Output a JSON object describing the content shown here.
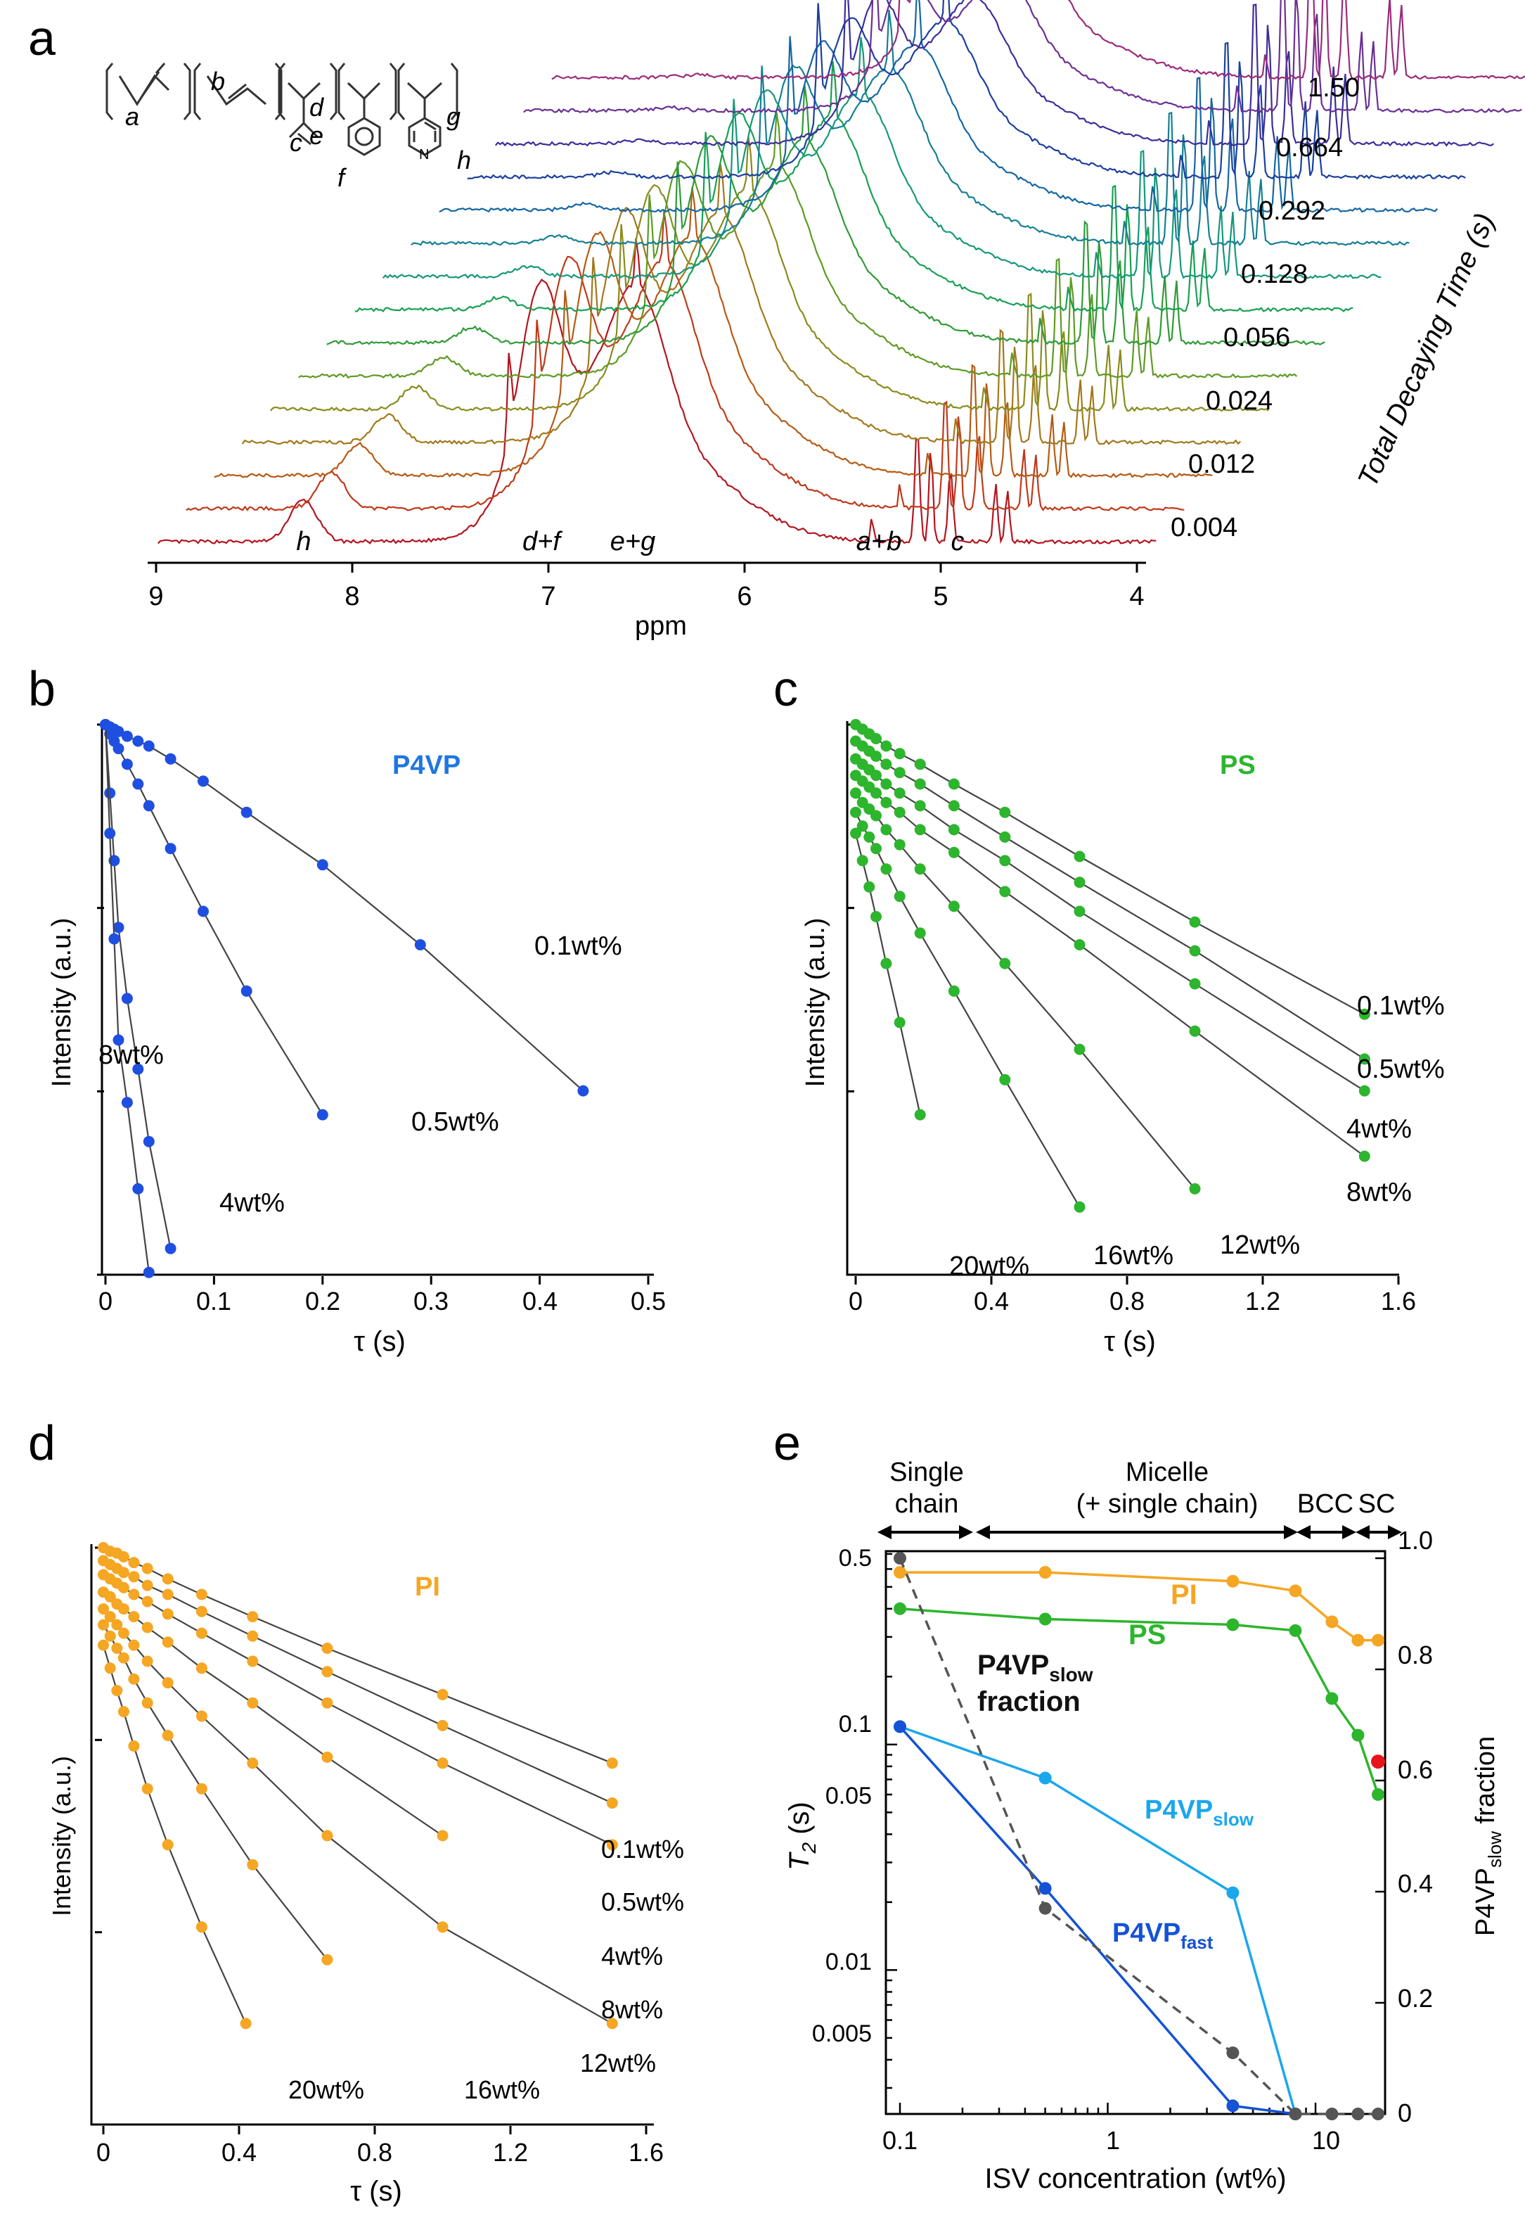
{
  "panels": {
    "a": {
      "letter": "a",
      "xlabel": "ppm",
      "xticks": [
        "9",
        "8",
        "7",
        "6",
        "5",
        "4"
      ],
      "ylabel": "Total Decaying Time (s)",
      "time_labels": [
        "0.004",
        "0.012",
        "0.024",
        "0.056",
        "0.128",
        "0.292",
        "0.664",
        "1.50"
      ],
      "peak_labels": {
        "h": "h",
        "df": "d+f",
        "eg": "e+g",
        "ab": "a+b",
        "c": "c"
      },
      "structure_labels": {
        "a": "a",
        "b": "b",
        "c": "c",
        "d": "d",
        "e": "e",
        "f": "f",
        "g": "g",
        "h": "h",
        "n": "N"
      }
    },
    "b": {
      "letter": "b",
      "xlabel": "τ (s)",
      "ylabel": "Intensity (a.u.)",
      "title": "P4VP",
      "xticks": [
        "0",
        "0.1",
        "0.2",
        "0.3",
        "0.4",
        "0.5"
      ],
      "series_labels": [
        "0.1wt%",
        "0.5wt%",
        "4wt%",
        "8wt%"
      ]
    },
    "c": {
      "letter": "c",
      "xlabel": "τ (s)",
      "ylabel": "Intensity (a.u.)",
      "title": "PS",
      "xticks": [
        "0",
        "0.4",
        "0.8",
        "1.2",
        "1.6"
      ],
      "series_labels": [
        "0.1wt%",
        "0.5wt%",
        "4wt%",
        "8wt%",
        "12wt%",
        "16wt%",
        "20wt%"
      ]
    },
    "d": {
      "letter": "d",
      "xlabel": "τ (s)",
      "ylabel": "Intensity (a.u.)",
      "title": "PI",
      "xticks": [
        "0",
        "0.4",
        "0.8",
        "1.2",
        "1.6"
      ],
      "series_labels": [
        "0.1wt%",
        "0.5wt%",
        "4wt%",
        "8wt%",
        "12wt%",
        "16wt%",
        "20wt%"
      ]
    },
    "e": {
      "letter": "e",
      "xlabel": "ISV concentration (wt%)",
      "ylabel_main": "T",
      "ylabel_sub": "2",
      "ylabel_unit": " (s)",
      "y2label_main": "P4VP",
      "y2label_sub": "slow",
      "y2label_unit": " fraction",
      "xticks": [
        "0.1",
        "1",
        "10"
      ],
      "yticks": [
        "0.005",
        "0.01",
        "0.05",
        "0.1",
        "0.5"
      ],
      "y2ticks": [
        "0",
        "0.2",
        "0.4",
        "0.6",
        "0.8",
        "1.0"
      ],
      "regions": {
        "single_l1": "Single",
        "single_l2": "chain",
        "micelle_l1": "Micelle",
        "micelle_l2": "(+ single chain)",
        "bcc": "BCC",
        "sc": "SC"
      },
      "labels": {
        "pi": "PI",
        "ps": "PS",
        "slow_main": "P4VP",
        "slow_sub": "slow",
        "fast_main": "P4VP",
        "fast_sub": "fast",
        "frac_main": "P4VP",
        "frac_sub": "slow",
        "frac_l2": "fraction"
      }
    }
  },
  "colors": {
    "p4vp": "#1f4fe0",
    "ps": "#2db52d",
    "pi": "#f5a623",
    "p4vp_slow": "#1aa7ec",
    "p4vp_fast": "#1552d6",
    "fraction": "#555555",
    "highlight": "#e8141c"
  },
  "chart_data": [
    {
      "panel": "a",
      "type": "line",
      "x_axis": "chemical shift (ppm)",
      "xlim": [
        9,
        3.8
      ],
      "series_times_s": [
        0.004,
        0.006,
        0.012,
        0.016,
        0.024,
        0.036,
        0.056,
        0.084,
        0.128,
        0.19,
        0.292,
        0.44,
        0.664,
        1.0,
        1.5
      ],
      "peaks": [
        {
          "label": "h",
          "ppm": 8.25
        },
        {
          "label": "d+f",
          "ppm": 7.1
        },
        {
          "label": "e+g",
          "ppm": 6.55
        },
        {
          "label": "a+b",
          "ppm": 5.0
        },
        {
          "label": "c",
          "ppm": 4.65
        }
      ]
    },
    {
      "panel": "b",
      "type": "scatter",
      "title": "P4VP",
      "xlabel": "τ (s)",
      "ylabel": "Intensity (a.u.)",
      "xlim": [
        0,
        0.5
      ],
      "y_scale": "log",
      "series": [
        {
          "name": "0.1wt%",
          "x": [
            0,
            0.004,
            0.008,
            0.012,
            0.02,
            0.03,
            0.04,
            0.06,
            0.09,
            0.13,
            0.2,
            0.29,
            0.44
          ],
          "y": [
            1.0,
            0.99,
            0.98,
            0.97,
            0.95,
            0.93,
            0.91,
            0.86,
            0.78,
            0.68,
            0.54,
            0.38,
            0.2
          ]
        },
        {
          "name": "0.5wt%",
          "x": [
            0,
            0.004,
            0.008,
            0.012,
            0.02,
            0.03,
            0.04,
            0.06,
            0.09,
            0.13,
            0.2
          ],
          "y": [
            1.0,
            0.96,
            0.93,
            0.9,
            0.84,
            0.77,
            0.7,
            0.58,
            0.44,
            0.31,
            0.18
          ]
        },
        {
          "name": "4wt%",
          "x": [
            0,
            0.004,
            0.008,
            0.012,
            0.02,
            0.03,
            0.04,
            0.06
          ],
          "y": [
            1.0,
            0.74,
            0.55,
            0.41,
            0.3,
            0.22,
            0.16,
            0.1
          ]
        },
        {
          "name": "8wt%",
          "x": [
            0,
            0.004,
            0.008,
            0.012,
            0.02,
            0.03,
            0.04
          ],
          "y": [
            1.0,
            0.62,
            0.39,
            0.25,
            0.19,
            0.13,
            0.09
          ]
        }
      ]
    },
    {
      "panel": "c",
      "type": "scatter",
      "title": "PS",
      "xlabel": "τ (s)",
      "ylabel": "Intensity (a.u.)",
      "xlim": [
        0,
        1.6
      ],
      "y_scale": "log",
      "series": [
        {
          "name": "0.1wt%",
          "x": [
            0,
            0.02,
            0.04,
            0.06,
            0.09,
            0.13,
            0.19,
            0.29,
            0.44,
            0.66,
            1.0,
            1.5
          ],
          "y": [
            1.0,
            0.98,
            0.96,
            0.94,
            0.91,
            0.88,
            0.84,
            0.77,
            0.68,
            0.56,
            0.42,
            0.28
          ]
        },
        {
          "name": "0.5wt%",
          "x": [
            0,
            0.02,
            0.04,
            0.06,
            0.09,
            0.13,
            0.19,
            0.29,
            0.44,
            0.66,
            1.0,
            1.5
          ],
          "y": [
            0.93,
            0.91,
            0.89,
            0.87,
            0.84,
            0.81,
            0.77,
            0.7,
            0.61,
            0.5,
            0.37,
            0.23
          ]
        },
        {
          "name": "4wt%",
          "x": [
            0,
            0.02,
            0.04,
            0.06,
            0.09,
            0.13,
            0.19,
            0.29,
            0.44,
            0.66,
            1.0,
            1.5
          ],
          "y": [
            0.86,
            0.84,
            0.82,
            0.8,
            0.77,
            0.74,
            0.7,
            0.63,
            0.55,
            0.44,
            0.32,
            0.2
          ]
        },
        {
          "name": "8wt%",
          "x": [
            0,
            0.02,
            0.04,
            0.06,
            0.09,
            0.13,
            0.19,
            0.29,
            0.44,
            0.66,
            1.0,
            1.5
          ],
          "y": [
            0.8,
            0.78,
            0.76,
            0.74,
            0.71,
            0.68,
            0.63,
            0.57,
            0.48,
            0.38,
            0.26,
            0.15
          ]
        },
        {
          "name": "12wt%",
          "x": [
            0,
            0.02,
            0.04,
            0.06,
            0.09,
            0.13,
            0.19,
            0.29,
            0.44,
            0.66,
            1.0
          ],
          "y": [
            0.74,
            0.71,
            0.69,
            0.67,
            0.63,
            0.59,
            0.53,
            0.45,
            0.35,
            0.24,
            0.13
          ]
        },
        {
          "name": "16wt%",
          "x": [
            0,
            0.02,
            0.04,
            0.06,
            0.09,
            0.13,
            0.19,
            0.29,
            0.44,
            0.66
          ],
          "y": [
            0.68,
            0.64,
            0.61,
            0.58,
            0.53,
            0.47,
            0.4,
            0.31,
            0.21,
            0.12
          ]
        },
        {
          "name": "20wt%",
          "x": [
            0,
            0.02,
            0.04,
            0.06,
            0.09,
            0.13,
            0.19
          ],
          "y": [
            0.62,
            0.55,
            0.49,
            0.43,
            0.35,
            0.27,
            0.18
          ]
        }
      ]
    },
    {
      "panel": "d",
      "type": "scatter",
      "title": "PI",
      "xlabel": "τ (s)",
      "ylabel": "Intensity (a.u.)",
      "xlim": [
        0,
        1.6
      ],
      "y_scale": "log",
      "series": [
        {
          "name": "0.1wt%",
          "x": [
            0,
            0.02,
            0.04,
            0.06,
            0.09,
            0.13,
            0.19,
            0.29,
            0.44,
            0.66,
            1.0,
            1.5
          ],
          "y": [
            1.0,
            0.98,
            0.97,
            0.95,
            0.92,
            0.89,
            0.84,
            0.77,
            0.68,
            0.57,
            0.44,
            0.3
          ]
        },
        {
          "name": "0.5wt%",
          "x": [
            0,
            0.02,
            0.04,
            0.06,
            0.09,
            0.13,
            0.19,
            0.29,
            0.44,
            0.66,
            1.0,
            1.5
          ],
          "y": [
            0.93,
            0.91,
            0.89,
            0.87,
            0.85,
            0.81,
            0.77,
            0.7,
            0.61,
            0.5,
            0.37,
            0.24
          ]
        },
        {
          "name": "4wt%",
          "x": [
            0,
            0.02,
            0.04,
            0.06,
            0.09,
            0.13,
            0.19,
            0.29,
            0.44,
            0.66,
            1.0,
            1.5
          ],
          "y": [
            0.86,
            0.84,
            0.82,
            0.8,
            0.77,
            0.74,
            0.69,
            0.62,
            0.53,
            0.42,
            0.3,
            0.19
          ]
        },
        {
          "name": "8wt%",
          "x": [
            0,
            0.02,
            0.04,
            0.06,
            0.09,
            0.13,
            0.19,
            0.29,
            0.44,
            0.66,
            1.0
          ],
          "y": [
            0.78,
            0.76,
            0.73,
            0.71,
            0.68,
            0.64,
            0.59,
            0.51,
            0.42,
            0.31,
            0.2
          ]
        },
        {
          "name": "12wt%",
          "x": [
            0,
            0.02,
            0.04,
            0.06,
            0.09,
            0.13,
            0.19,
            0.29,
            0.44,
            0.66,
            1.0,
            1.5
          ],
          "y": [
            0.71,
            0.68,
            0.65,
            0.62,
            0.58,
            0.53,
            0.47,
            0.39,
            0.3,
            0.2,
            0.12,
            0.07
          ]
        },
        {
          "name": "16wt%",
          "x": [
            0,
            0.02,
            0.04,
            0.06,
            0.09,
            0.13,
            0.19,
            0.29,
            0.44,
            0.66
          ],
          "y": [
            0.65,
            0.61,
            0.57,
            0.54,
            0.48,
            0.42,
            0.35,
            0.26,
            0.17,
            0.1
          ]
        },
        {
          "name": "20wt%",
          "x": [
            0,
            0.02,
            0.04,
            0.06,
            0.09,
            0.13,
            0.19,
            0.29,
            0.42
          ],
          "y": [
            0.58,
            0.51,
            0.45,
            0.4,
            0.33,
            0.26,
            0.19,
            0.12,
            0.07
          ]
        }
      ]
    },
    {
      "panel": "e",
      "type": "line",
      "xlabel": "ISV concentration (wt%)",
      "ylabel": "T2 (s)",
      "y2label": "P4VPslow fraction",
      "x_scale": "log",
      "y_scale": "log",
      "xlim": [
        0.09,
        20
      ],
      "ylim": [
        0.0023,
        0.72
      ],
      "y2lim": [
        0,
        1.0
      ],
      "series": [
        {
          "name": "PI",
          "axis": "left",
          "x": [
            0.1,
            0.5,
            4,
            8,
            12,
            16,
            20
          ],
          "y": [
            0.58,
            0.58,
            0.53,
            0.48,
            0.35,
            0.29,
            0.29
          ]
        },
        {
          "name": "PS",
          "axis": "left",
          "x": [
            0.1,
            0.5,
            4,
            8,
            12,
            16,
            20
          ],
          "y": [
            0.4,
            0.36,
            0.34,
            0.32,
            0.16,
            0.11,
            0.06
          ]
        },
        {
          "name": "P4VPslow",
          "axis": "left",
          "x": [
            0.1,
            0.5,
            4,
            8
          ],
          "y": [
            0.12,
            0.071,
            0.022,
            0.0023
          ]
        },
        {
          "name": "P4VPfast",
          "axis": "left",
          "x": [
            0.1,
            0.5,
            4,
            8
          ],
          "y": [
            0.12,
            0.023,
            0.0025,
            0.0023
          ]
        },
        {
          "name": "P4VPslow fraction",
          "axis": "right",
          "x": [
            0.1,
            0.5,
            4,
            8,
            12,
            16,
            20
          ],
          "y": [
            1.0,
            0.37,
            0.11,
            0,
            0,
            0,
            0
          ]
        }
      ],
      "highlight_point": {
        "x": 20,
        "y": 0.084
      }
    }
  ]
}
